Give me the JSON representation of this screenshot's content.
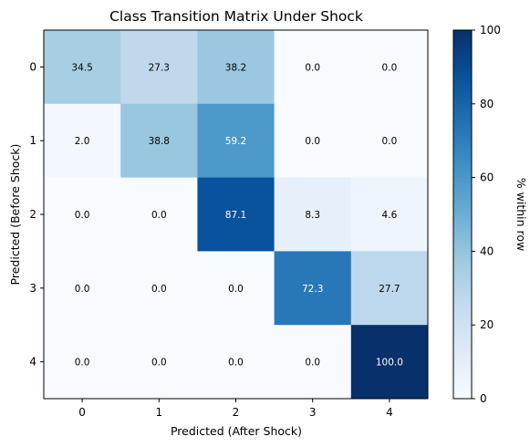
{
  "chart_data": {
    "type": "heatmap",
    "title": "Class Transition Matrix Under Shock",
    "xlabel": "Predicted (After Shock)",
    "ylabel": "Predicted (Before Shock)",
    "x_categories": [
      "0",
      "1",
      "2",
      "3",
      "4"
    ],
    "y_categories": [
      "0",
      "1",
      "2",
      "3",
      "4"
    ],
    "values": [
      [
        34.5,
        27.3,
        38.2,
        0.0,
        0.0
      ],
      [
        2.0,
        38.8,
        59.2,
        0.0,
        0.0
      ],
      [
        0.0,
        0.0,
        87.1,
        8.3,
        4.6
      ],
      [
        0.0,
        0.0,
        0.0,
        72.3,
        27.7
      ],
      [
        0.0,
        0.0,
        0.0,
        0.0,
        100.0
      ]
    ],
    "value_format": "0.0",
    "colorscale": "Blues",
    "colorbar": {
      "label": "% within row",
      "range": [
        0,
        100
      ],
      "ticks": [
        "0",
        "20",
        "40",
        "60",
        "80",
        "100"
      ]
    }
  }
}
